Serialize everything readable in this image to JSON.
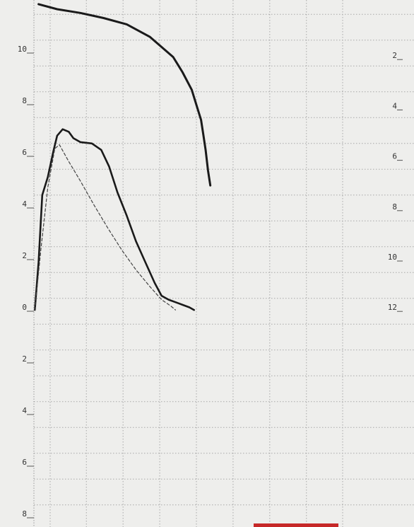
{
  "header_fragment": "",
  "chart_data": {
    "type": "line",
    "title": "",
    "xlabel": "",
    "ylabel": "",
    "grid": true,
    "left_axis": {
      "range": [
        -8,
        12
      ],
      "tick_labels": [
        {
          "value": 10,
          "label": "10"
        },
        {
          "value": 8,
          "label": "8"
        },
        {
          "value": 6,
          "label": "6"
        },
        {
          "value": 4,
          "label": "4"
        },
        {
          "value": 2,
          "label": "2"
        },
        {
          "value": 0,
          "label": "0"
        },
        {
          "value": -2,
          "label": "2"
        },
        {
          "value": -4,
          "label": "4"
        },
        {
          "value": -6,
          "label": "6"
        },
        {
          "value": -8,
          "label": "8"
        }
      ]
    },
    "right_axis": {
      "inverted": true,
      "tick_labels": [
        {
          "value": 2,
          "label": "2"
        },
        {
          "value": 4,
          "label": "4"
        },
        {
          "value": 6,
          "label": "6"
        },
        {
          "value": 8,
          "label": "8"
        },
        {
          "value": 10,
          "label": "10"
        },
        {
          "value": 12,
          "label": "12"
        }
      ]
    },
    "x_range": [
      0,
      7
    ],
    "x_grid": [
      0.35,
      1.13,
      1.92,
      2.71,
      3.5,
      4.29,
      5.08,
      5.87,
      6.65
    ],
    "series": [
      {
        "name": "",
        "style": "solid-thick",
        "axis": "right",
        "x": [
          0.1,
          0.5,
          1.0,
          1.5,
          2.0,
          2.5,
          3.0,
          3.2,
          3.4,
          3.5,
          3.6,
          3.65,
          3.7,
          3.75,
          3.8
        ],
        "y": [
          -0.2,
          0.0,
          0.15,
          0.35,
          0.6,
          1.1,
          1.9,
          2.5,
          3.2,
          3.8,
          4.4,
          5.0,
          5.6,
          6.4,
          7.0
        ]
      },
      {
        "name": "",
        "style": "solid",
        "axis": "left",
        "x": [
          0.02,
          0.1,
          0.18,
          0.3,
          0.42,
          0.5,
          0.62,
          0.75,
          0.85,
          1.0,
          1.25,
          1.45,
          1.62,
          1.8,
          2.0,
          2.2,
          2.4,
          2.6,
          2.75,
          2.9,
          3.05,
          3.2,
          3.35,
          3.45
        ],
        "y": [
          0.05,
          1.9,
          4.5,
          5.2,
          6.2,
          6.8,
          7.05,
          6.95,
          6.7,
          6.55,
          6.5,
          6.25,
          5.6,
          4.6,
          3.7,
          2.7,
          1.9,
          1.1,
          0.6,
          0.45,
          0.35,
          0.25,
          0.15,
          0.05
        ]
      },
      {
        "name": "",
        "style": "dashed",
        "axis": "left",
        "x": [
          0.02,
          0.15,
          0.3,
          0.45,
          0.55,
          0.75,
          1.0,
          1.3,
          1.6,
          1.9,
          2.2,
          2.5,
          2.75,
          2.95,
          3.05
        ],
        "y": [
          0.05,
          2.4,
          4.8,
          6.3,
          6.45,
          5.8,
          5.05,
          4.1,
          3.2,
          2.35,
          1.6,
          0.95,
          0.45,
          0.2,
          0.05
        ]
      }
    ]
  }
}
